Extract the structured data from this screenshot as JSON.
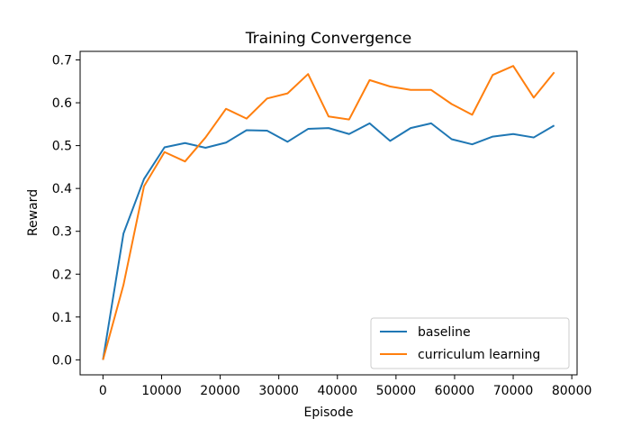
{
  "chart_data": {
    "type": "line",
    "title": "Training Convergence",
    "xlabel": "Episode",
    "ylabel": "Reward",
    "xlim": [
      -3900,
      80900
    ],
    "ylim": [
      -0.035,
      0.72
    ],
    "xticks": [
      0,
      10000,
      20000,
      30000,
      40000,
      50000,
      60000,
      70000,
      80000
    ],
    "yticks": [
      0.0,
      0.1,
      0.2,
      0.3,
      0.4,
      0.5,
      0.6,
      0.7
    ],
    "grid": false,
    "legend_position": "lower-right",
    "x": [
      0,
      3500,
      7000,
      10500,
      14000,
      17500,
      21000,
      24500,
      28000,
      31500,
      35000,
      38500,
      42000,
      45500,
      49000,
      52500,
      56000,
      59500,
      63000,
      66500,
      70000,
      73500,
      77000
    ],
    "series": [
      {
        "name": "baseline",
        "color": "#1f77b4",
        "values": [
          0.0,
          0.295,
          0.422,
          0.496,
          0.506,
          0.495,
          0.507,
          0.536,
          0.535,
          0.509,
          0.539,
          0.541,
          0.527,
          0.552,
          0.511,
          0.541,
          0.552,
          0.515,
          0.503,
          0.521,
          0.527,
          0.519,
          0.547
        ]
      },
      {
        "name": "curriculum learning",
        "color": "#ff7f0e",
        "values": [
          0.0,
          0.175,
          0.405,
          0.485,
          0.463,
          0.519,
          0.586,
          0.563,
          0.61,
          0.622,
          0.667,
          0.568,
          0.561,
          0.653,
          0.638,
          0.63,
          0.63,
          0.597,
          0.572,
          0.665,
          0.686,
          0.612,
          0.671
        ]
      }
    ]
  }
}
